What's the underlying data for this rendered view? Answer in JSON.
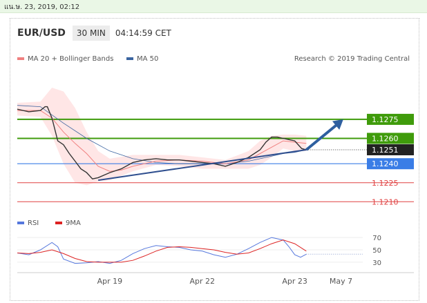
{
  "date_bar": "แน.ษ. 23, 2019, 02:12",
  "header": {
    "symbol": "EUR/USD",
    "timeframe": "30 MIN",
    "time": "04:14:59 CET"
  },
  "colors": {
    "price": "#333333",
    "ma20": "#f08080",
    "band": "#ffd5d5",
    "ma50": "#3b64a0",
    "resistance": "#3f9b0b",
    "support_blue": "#3a7de6",
    "support_red": "#e04040",
    "rsi": "#5577dd",
    "ma9": "#dd2222",
    "arrow": "#2e5f9f",
    "trend": "#2f4f8f"
  },
  "chart_data": [
    {
      "type": "line",
      "title": "",
      "legend": [
        {
          "name": "MA 20 + Bollinger Bands",
          "color": "#f08080"
        },
        {
          "name": "MA 50",
          "color": "#3b64a0"
        }
      ],
      "credit": "Research © 2019 Trading Central",
      "legend_position": "top-left",
      "x_ticks": [
        "Apr 19",
        "Apr 22",
        "Apr 23",
        "May 7"
      ],
      "x_tick_pos": [
        8,
        16,
        24,
        28
      ],
      "xlim": [
        0,
        30
      ],
      "ylim": [
        1.1202,
        1.13
      ],
      "current_price": {
        "label": "1.1251",
        "value": 1.1251
      },
      "levels": [
        {
          "label": "1.1275",
          "value": 1.1275,
          "kind": "resistance"
        },
        {
          "label": "1.1260",
          "value": 1.126,
          "kind": "resistance"
        },
        {
          "label": "1.1240",
          "value": 1.124,
          "kind": "support"
        },
        {
          "label": "1.1225",
          "value": 1.1225,
          "kind": "support"
        },
        {
          "label": "1.1210",
          "value": 1.121,
          "kind": "support"
        }
      ],
      "price": {
        "x": [
          0,
          1,
          2,
          2.4,
          2.6,
          3,
          3.5,
          4,
          4.5,
          5,
          5.5,
          6,
          6.5,
          7,
          8,
          9,
          10,
          11,
          12,
          13,
          14,
          15,
          16,
          17,
          18,
          19,
          20,
          21,
          21.5,
          22,
          22.5,
          23,
          23.5,
          24,
          24.6,
          25
        ],
        "y": [
          1.1283,
          1.1281,
          1.1282,
          1.1285,
          1.1285,
          1.1276,
          1.1258,
          1.1255,
          1.1248,
          1.1242,
          1.1236,
          1.1233,
          1.1228,
          1.1229,
          1.1233,
          1.1236,
          1.1241,
          1.1243,
          1.1244,
          1.1243,
          1.1243,
          1.1242,
          1.1241,
          1.124,
          1.1238,
          1.1241,
          1.1245,
          1.1251,
          1.1257,
          1.1261,
          1.1261,
          1.126,
          1.1259,
          1.1258,
          1.1252,
          1.1251
        ]
      },
      "ma20": {
        "x": [
          0,
          2,
          3,
          4,
          5,
          6,
          7,
          8,
          9,
          10,
          12,
          14,
          16,
          18,
          20,
          21,
          22,
          23,
          24,
          25
        ],
        "y": [
          1.1282,
          1.1282,
          1.1276,
          1.1265,
          1.1256,
          1.1248,
          1.1238,
          1.1234,
          1.1235,
          1.1238,
          1.1242,
          1.1243,
          1.1242,
          1.124,
          1.1243,
          1.1248,
          1.1253,
          1.1258,
          1.1257,
          1.1256
        ]
      },
      "ma50": {
        "x": [
          0,
          2,
          4,
          6,
          8,
          10,
          12,
          14,
          16,
          18,
          20,
          21,
          22,
          23,
          24,
          25
        ],
        "y": [
          1.1286,
          1.1285,
          1.1272,
          1.126,
          1.125,
          1.1244,
          1.1241,
          1.124,
          1.124,
          1.124,
          1.1242,
          1.1244,
          1.1246,
          1.1248,
          1.1249,
          1.1251
        ]
      },
      "band_upper": {
        "x": [
          0,
          2,
          3,
          4,
          5,
          6,
          7,
          8,
          10,
          12,
          14,
          16,
          18,
          20,
          21,
          22,
          23,
          24,
          25
        ],
        "y": [
          1.1288,
          1.1289,
          1.13,
          1.1297,
          1.1284,
          1.1265,
          1.125,
          1.1244,
          1.1247,
          1.1247,
          1.1247,
          1.1245,
          1.1243,
          1.125,
          1.1258,
          1.1262,
          1.1263,
          1.1263,
          1.1262
        ]
      },
      "band_lower": {
        "x": [
          0,
          2,
          3,
          4,
          5,
          6,
          7,
          8,
          10,
          12,
          14,
          16,
          18,
          20,
          21,
          22,
          23,
          24,
          25
        ],
        "y": [
          1.1278,
          1.1277,
          1.1262,
          1.124,
          1.1225,
          1.1223,
          1.1226,
          1.1227,
          1.1234,
          1.1239,
          1.1238,
          1.1236,
          1.1236,
          1.1236,
          1.1239,
          1.1245,
          1.1252,
          1.125,
          1.125
        ]
      },
      "trendline": {
        "x": [
          7,
          25
        ],
        "y": [
          1.1227,
          1.1251
        ]
      },
      "forecast_arrow": {
        "x": [
          25,
          28.2
        ],
        "y": [
          1.1251,
          1.1275
        ]
      }
    },
    {
      "type": "line",
      "title": "",
      "legend": [
        {
          "name": "RSI",
          "color": "#5577dd"
        },
        {
          "name": "9MA",
          "color": "#dd2222"
        }
      ],
      "ylim": [
        22,
        78
      ],
      "y_ticks": [
        "70",
        "50",
        "30"
      ],
      "y_tick_values": [
        70,
        50,
        30
      ],
      "rsi": {
        "x": [
          0,
          1,
          2,
          3,
          3.5,
          4,
          5,
          6,
          7,
          8,
          9,
          10,
          11,
          12,
          13,
          14,
          15,
          16,
          17,
          18,
          19,
          20,
          21,
          22,
          23,
          23.5,
          24,
          24.5,
          25
        ],
        "y": [
          45,
          42,
          50,
          62,
          55,
          35,
          28,
          29,
          31,
          28,
          33,
          44,
          52,
          57,
          55,
          54,
          50,
          48,
          42,
          38,
          43,
          52,
          62,
          70,
          66,
          55,
          42,
          38,
          43
        ]
      },
      "ma9": {
        "x": [
          0,
          1,
          2,
          3,
          4,
          5,
          6,
          7,
          8,
          9,
          10,
          11,
          12,
          13,
          14,
          15,
          16,
          17,
          18,
          19,
          20,
          21,
          22,
          23,
          24,
          25
        ],
        "y": [
          45,
          44,
          46,
          50,
          44,
          36,
          31,
          30,
          30,
          30,
          33,
          40,
          48,
          54,
          55,
          54,
          52,
          50,
          46,
          43,
          45,
          52,
          60,
          66,
          60,
          48
        ]
      }
    }
  ]
}
